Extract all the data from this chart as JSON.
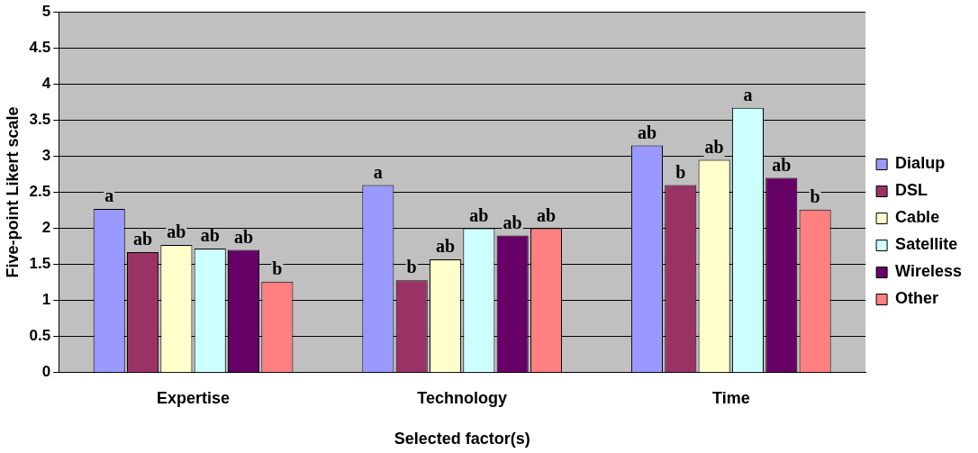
{
  "chart_data": {
    "type": "bar",
    "xlabel": "Selected factor(s)",
    "ylabel": "Five-point Likert scale",
    "categories": [
      "Expertise",
      "Technology",
      "Time"
    ],
    "series": [
      {
        "name": "Dialup",
        "color": "#9999ff",
        "values": [
          2.27,
          2.6,
          3.15
        ],
        "value_labels": [
          "a",
          "a",
          "ab"
        ]
      },
      {
        "name": "DSL",
        "color": "#993366",
        "values": [
          1.67,
          1.28,
          2.6
        ],
        "value_labels": [
          "ab",
          "b",
          "b"
        ]
      },
      {
        "name": "Cable",
        "color": "#ffffcc",
        "values": [
          1.77,
          1.57,
          2.95
        ],
        "value_labels": [
          "ab",
          "ab",
          "ab"
        ]
      },
      {
        "name": "Satellite",
        "color": "#ccffff",
        "values": [
          1.72,
          2.0,
          3.67
        ],
        "value_labels": [
          "ab",
          "ab",
          "a"
        ]
      },
      {
        "name": "Wireless",
        "color": "#660066",
        "values": [
          1.7,
          1.9,
          2.7
        ],
        "value_labels": [
          "ab",
          "ab",
          "ab"
        ]
      },
      {
        "name": "Other",
        "color": "#ff8080",
        "values": [
          1.26,
          2.0,
          2.26
        ],
        "value_labels": [
          "b",
          "ab",
          "b"
        ]
      }
    ],
    "ylim": [
      0,
      5
    ],
    "yticks": [
      0,
      0.5,
      1,
      1.5,
      2,
      2.5,
      3,
      3.5,
      4,
      4.5,
      5
    ],
    "grid": "y",
    "legend": "right"
  }
}
